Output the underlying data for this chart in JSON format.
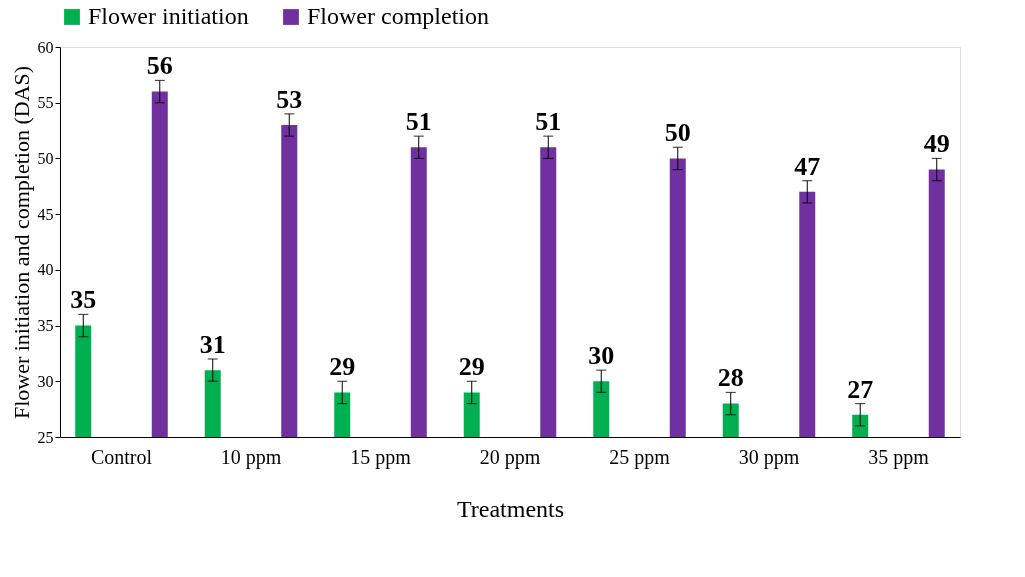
{
  "chart_data": {
    "type": "bar",
    "xlabel": "Treatments",
    "ylabel": "Flower initiation and completion (DAS)",
    "categories": [
      "Control",
      "10 ppm",
      "15 ppm",
      "20 ppm",
      "25 ppm",
      "30 ppm",
      "35 ppm"
    ],
    "series": [
      {
        "name": "Flower initiation",
        "color": "#00b050",
        "values": [
          35,
          31,
          29,
          29,
          30,
          28,
          27
        ],
        "errors": [
          1,
          1,
          1,
          1,
          1,
          1,
          1
        ]
      },
      {
        "name": "Flower completion",
        "color": "#7030a0",
        "values": [
          56,
          53,
          51,
          51,
          50,
          47,
          49
        ],
        "errors": [
          1,
          1,
          1,
          1,
          1,
          1,
          1
        ]
      }
    ],
    "ylim": [
      25,
      60
    ],
    "yticks": [
      25,
      30,
      35,
      40,
      45,
      50,
      55,
      60
    ],
    "data_labels": true,
    "legend": "top",
    "grid": false
  }
}
